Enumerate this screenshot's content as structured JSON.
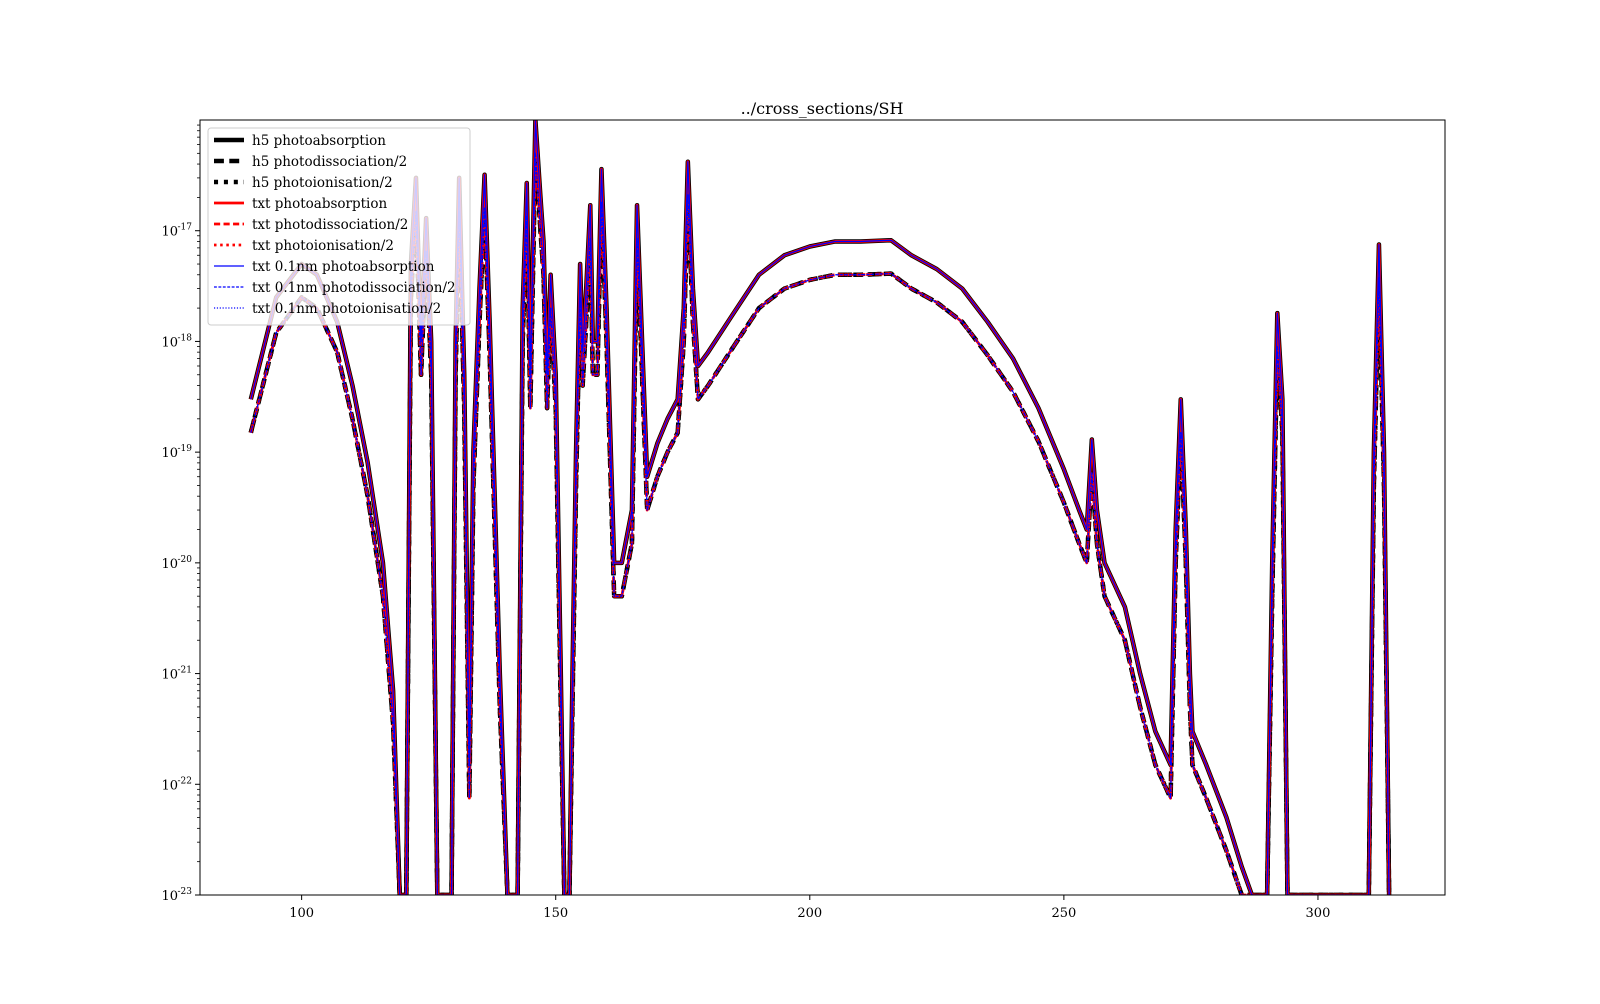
{
  "chart_data": {
    "type": "line",
    "title": "../cross_sections/SH",
    "xlabel": "",
    "ylabel": "",
    "y_scale": "log",
    "xlim": [
      80,
      325
    ],
    "ylim": [
      1e-23,
      1e-16
    ],
    "x_ticks": [
      100,
      150,
      200,
      250,
      300
    ],
    "y_ticks": [
      {
        "value": 1e-17,
        "base": "10",
        "exp": "-17"
      },
      {
        "value": 1e-18,
        "base": "10",
        "exp": "-18"
      },
      {
        "value": 1e-19,
        "base": "10",
        "exp": "-19"
      },
      {
        "value": 1e-20,
        "base": "10",
        "exp": "-20"
      },
      {
        "value": 1e-21,
        "base": "10",
        "exp": "-21"
      },
      {
        "value": 1e-22,
        "base": "10",
        "exp": "-22"
      },
      {
        "value": 1e-23,
        "base": "10",
        "exp": "-23"
      }
    ],
    "grid": false,
    "legend_position": "top-left",
    "colors": {
      "h5": "#000000",
      "txt": "#ff0000",
      "txt_0_1nm": "#0000ff"
    },
    "curves": {
      "photoabsorption": [
        [
          90,
          3e-19
        ],
        [
          95,
          2.5e-18
        ],
        [
          100,
          5e-18
        ],
        [
          103,
          4e-18
        ],
        [
          107,
          1.5e-18
        ],
        [
          110,
          4e-19
        ],
        [
          113,
          8e-20
        ],
        [
          116,
          1e-20
        ],
        [
          118,
          7e-22
        ],
        [
          119.3,
          1e-23
        ],
        [
          120.6,
          1e-23
        ],
        [
          121.5,
          5e-18
        ],
        [
          122.5,
          3e-17
        ],
        [
          123.5,
          1e-18
        ],
        [
          124.5,
          1.3e-17
        ],
        [
          125.5,
          1e-18
        ],
        [
          126.7,
          1e-23
        ],
        [
          129.5,
          1e-23
        ],
        [
          130.3,
          1e-18
        ],
        [
          131,
          3e-17
        ],
        [
          132,
          5e-19
        ],
        [
          133,
          1.5e-22
        ],
        [
          133.8,
          1e-19
        ],
        [
          135,
          3e-18
        ],
        [
          136,
          3.2e-17
        ],
        [
          137,
          1.5e-18
        ],
        [
          139,
          1e-21
        ],
        [
          140.5,
          1e-23
        ],
        [
          142.5,
          1e-23
        ],
        [
          143.5,
          2e-18
        ],
        [
          144.3,
          2.7e-17
        ],
        [
          145,
          5e-19
        ],
        [
          146,
          1e-16
        ],
        [
          147,
          2e-17
        ],
        [
          147.6,
          8e-18
        ],
        [
          148.3,
          5e-19
        ],
        [
          149,
          4e-18
        ],
        [
          150,
          5e-19
        ],
        [
          151,
          1e-21
        ],
        [
          151.7,
          1e-23
        ],
        [
          152.7,
          1e-23
        ],
        [
          153.3,
          1e-21
        ],
        [
          154,
          1e-19
        ],
        [
          154.8,
          5e-18
        ],
        [
          155.3,
          8e-19
        ],
        [
          156,
          3e-18
        ],
        [
          156.8,
          1.7e-17
        ],
        [
          157.3,
          1e-18
        ],
        [
          158.2,
          1e-18
        ],
        [
          159,
          3.6e-17
        ],
        [
          160,
          2e-18
        ],
        [
          161.5,
          1e-20
        ],
        [
          163,
          1e-20
        ],
        [
          165,
          3e-20
        ],
        [
          166,
          1.7e-17
        ],
        [
          167,
          1e-18
        ],
        [
          168,
          6e-20
        ],
        [
          170,
          1.2e-19
        ],
        [
          172,
          2e-19
        ],
        [
          174,
          3e-19
        ],
        [
          175.2,
          2e-18
        ],
        [
          176,
          4.2e-17
        ],
        [
          177,
          3e-18
        ],
        [
          178,
          6e-19
        ],
        [
          180,
          8e-19
        ],
        [
          185,
          1.8e-18
        ],
        [
          190,
          4e-18
        ],
        [
          195,
          6e-18
        ],
        [
          200,
          7.2e-18
        ],
        [
          205,
          8e-18
        ],
        [
          210,
          8e-18
        ],
        [
          216,
          8.2e-18
        ],
        [
          220,
          6e-18
        ],
        [
          225,
          4.5e-18
        ],
        [
          230,
          3e-18
        ],
        [
          235,
          1.5e-18
        ],
        [
          240,
          7e-19
        ],
        [
          245,
          2.5e-19
        ],
        [
          250,
          7e-20
        ],
        [
          253,
          3e-20
        ],
        [
          254.5,
          2e-20
        ],
        [
          255.5,
          1.3e-19
        ],
        [
          256.5,
          3e-20
        ],
        [
          258,
          1e-20
        ],
        [
          262,
          4e-21
        ],
        [
          265,
          1e-21
        ],
        [
          268,
          3e-22
        ],
        [
          271,
          1.5e-22
        ],
        [
          272,
          2e-20
        ],
        [
          273,
          3e-19
        ],
        [
          274,
          2e-20
        ],
        [
          274.8,
          1e-21
        ],
        [
          275.3,
          3e-22
        ],
        [
          278,
          1.5e-22
        ],
        [
          282,
          5e-23
        ],
        [
          285,
          1.8e-23
        ],
        [
          287,
          1e-23
        ],
        [
          290,
          1e-23
        ],
        [
          291,
          1e-20
        ],
        [
          292,
          1.8e-18
        ],
        [
          293,
          3e-19
        ],
        [
          294,
          1e-23
        ],
        [
          310,
          1e-23
        ],
        [
          311,
          1e-19
        ],
        [
          312,
          7.5e-18
        ],
        [
          313,
          1e-19
        ],
        [
          314,
          1e-23
        ]
      ],
      "photodissociation_half": [
        [
          90,
          1.5e-19
        ],
        [
          95,
          1.2e-18
        ],
        [
          100,
          2.5e-18
        ],
        [
          103,
          2e-18
        ],
        [
          107,
          8e-19
        ],
        [
          110,
          2e-19
        ],
        [
          113,
          4e-20
        ],
        [
          116,
          5e-21
        ],
        [
          118,
          3.5e-22
        ],
        [
          119.3,
          1e-23
        ],
        [
          120.6,
          1e-23
        ],
        [
          121.5,
          2.5e-18
        ],
        [
          122.5,
          1.5e-17
        ],
        [
          123.5,
          5e-19
        ],
        [
          124.5,
          6.5e-18
        ],
        [
          125.5,
          5e-19
        ],
        [
          126.7,
          1e-23
        ],
        [
          129.5,
          1e-23
        ],
        [
          130.3,
          5e-19
        ],
        [
          131,
          1.5e-17
        ],
        [
          132,
          2.5e-19
        ],
        [
          133,
          7.5e-23
        ],
        [
          133.8,
          5e-20
        ],
        [
          135,
          1.5e-18
        ],
        [
          136,
          1.6e-17
        ],
        [
          137,
          7.5e-19
        ],
        [
          139,
          5e-22
        ],
        [
          140.5,
          1e-23
        ],
        [
          142.5,
          1e-23
        ],
        [
          143.5,
          1e-18
        ],
        [
          144.3,
          1.35e-17
        ],
        [
          145,
          2.5e-19
        ],
        [
          146,
          5e-17
        ],
        [
          147,
          1e-17
        ],
        [
          147.6,
          4e-18
        ],
        [
          148.3,
          2.5e-19
        ],
        [
          149,
          2e-18
        ],
        [
          150,
          2.5e-19
        ],
        [
          151,
          5e-22
        ],
        [
          151.7,
          1e-23
        ],
        [
          152.7,
          1e-23
        ],
        [
          153.3,
          5e-22
        ],
        [
          154,
          5e-20
        ],
        [
          154.8,
          2.5e-18
        ],
        [
          155.3,
          4e-19
        ],
        [
          156,
          1.5e-18
        ],
        [
          156.8,
          8.5e-18
        ],
        [
          157.3,
          5e-19
        ],
        [
          158.2,
          5e-19
        ],
        [
          159,
          1.8e-17
        ],
        [
          160,
          1e-18
        ],
        [
          161.5,
          5e-21
        ],
        [
          163,
          5e-21
        ],
        [
          165,
          1.5e-20
        ],
        [
          166,
          8.5e-18
        ],
        [
          167,
          5e-19
        ],
        [
          168,
          3e-20
        ],
        [
          170,
          6e-20
        ],
        [
          172,
          1e-19
        ],
        [
          174,
          1.5e-19
        ],
        [
          175.2,
          1e-18
        ],
        [
          176,
          2.1e-17
        ],
        [
          177,
          1.5e-18
        ],
        [
          178,
          3e-19
        ],
        [
          180,
          4e-19
        ],
        [
          185,
          9e-19
        ],
        [
          190,
          2e-18
        ],
        [
          195,
          3e-18
        ],
        [
          200,
          3.6e-18
        ],
        [
          205,
          4e-18
        ],
        [
          210,
          4e-18
        ],
        [
          216,
          4.1e-18
        ],
        [
          220,
          3e-18
        ],
        [
          225,
          2.25e-18
        ],
        [
          230,
          1.5e-18
        ],
        [
          235,
          7.5e-19
        ],
        [
          240,
          3.5e-19
        ],
        [
          245,
          1.25e-19
        ],
        [
          250,
          3.5e-20
        ],
        [
          253,
          1.5e-20
        ],
        [
          254.5,
          1e-20
        ],
        [
          255.5,
          6.5e-20
        ],
        [
          256.5,
          1.5e-20
        ],
        [
          258,
          5e-21
        ],
        [
          262,
          2e-21
        ],
        [
          265,
          5e-22
        ],
        [
          268,
          1.5e-22
        ],
        [
          271,
          7.5e-23
        ],
        [
          272,
          1e-20
        ],
        [
          273,
          1.5e-19
        ],
        [
          274,
          1e-20
        ],
        [
          274.8,
          5e-22
        ],
        [
          275.3,
          1.5e-22
        ],
        [
          278,
          7.5e-23
        ],
        [
          282,
          2.5e-23
        ],
        [
          285,
          1e-23
        ],
        [
          290,
          1e-23
        ],
        [
          291,
          5e-21
        ],
        [
          292,
          9e-19
        ],
        [
          293,
          1.5e-19
        ],
        [
          294,
          1e-23
        ],
        [
          310,
          1e-23
        ],
        [
          311,
          5e-20
        ],
        [
          312,
          3.75e-18
        ],
        [
          313,
          5e-20
        ],
        [
          314,
          1e-23
        ]
      ]
    },
    "series": [
      {
        "name": "h5 photoabsorption",
        "color": "#000000",
        "line": "solid",
        "width": "thick",
        "curve": "photoabsorption"
      },
      {
        "name": "h5 photodissociation/2",
        "color": "#000000",
        "line": "dashed",
        "width": "thick",
        "curve": "photodissociation_half"
      },
      {
        "name": "h5 photoionisation/2",
        "color": "#000000",
        "line": "dotted",
        "width": "thick",
        "curve": "photodissociation_half"
      },
      {
        "name": "txt photoabsorption",
        "color": "#ff0000",
        "line": "solid",
        "width": "medium",
        "curve": "photoabsorption"
      },
      {
        "name": "txt photodissociation/2",
        "color": "#ff0000",
        "line": "dashed",
        "width": "medium",
        "curve": "photodissociation_half"
      },
      {
        "name": "txt photoionisation/2",
        "color": "#ff0000",
        "line": "dotted",
        "width": "medium",
        "curve": "photodissociation_half"
      },
      {
        "name": "txt 0.1nm photoabsorption",
        "color": "#0000ff",
        "line": "solid",
        "width": "thin",
        "curve": "photoabsorption"
      },
      {
        "name": "txt 0.1nm photodissociation/2",
        "color": "#0000ff",
        "line": "dashed",
        "width": "thin",
        "curve": "photodissociation_half"
      },
      {
        "name": "txt 0.1nm photoionisation/2",
        "color": "#0000ff",
        "line": "dotted",
        "width": "thin",
        "curve": "photodissociation_half"
      }
    ]
  }
}
